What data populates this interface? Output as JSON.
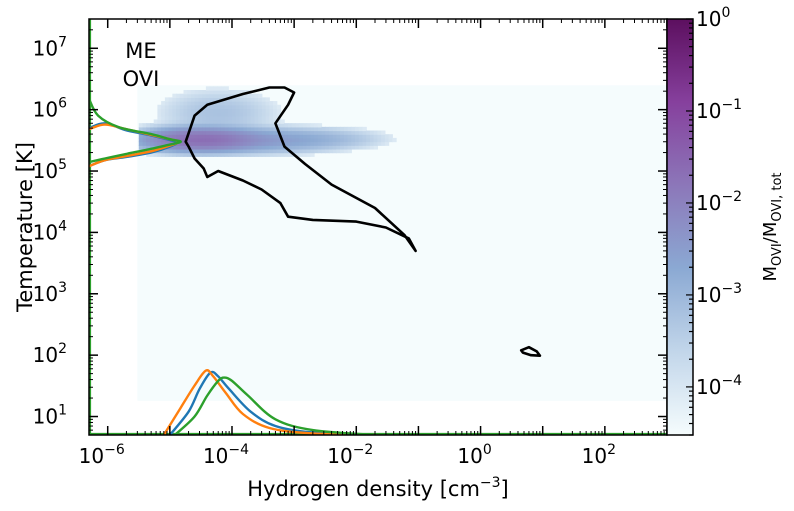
{
  "chart_data": {
    "type": "heatmap",
    "annotation": [
      "ME",
      "OVI"
    ],
    "xlabel": "Hydrogen density [cm",
    "xlabel_sup": "−3",
    "xlabel_end": "]",
    "ylabel": "Temperature [K]",
    "x_scale": "log",
    "y_scale": "log",
    "xlim": [
      5e-07,
      1000
    ],
    "ylim": [
      5,
      30000000
    ],
    "x_ticks": [
      {
        "value": 1e-06,
        "base": "10",
        "exp": "−6"
      },
      {
        "value": 0.0001,
        "base": "10",
        "exp": "−4"
      },
      {
        "value": 0.01,
        "base": "10",
        "exp": "−2"
      },
      {
        "value": 1,
        "base": "10",
        "exp": "0"
      },
      {
        "value": 100,
        "base": "10",
        "exp": "2"
      }
    ],
    "y_ticks": [
      {
        "value": 10,
        "base": "10",
        "exp": "1"
      },
      {
        "value": 100,
        "base": "10",
        "exp": "2"
      },
      {
        "value": 1000,
        "base": "10",
        "exp": "3"
      },
      {
        "value": 10000,
        "base": "10",
        "exp": "4"
      },
      {
        "value": 100000,
        "base": "10",
        "exp": "5"
      },
      {
        "value": 1000000,
        "base": "10",
        "exp": "6"
      },
      {
        "value": 10000000,
        "base": "10",
        "exp": "7"
      }
    ],
    "colorbar": {
      "label_main": "M",
      "label_sub1": "OVI",
      "label_mid": "/M",
      "label_sub2": "OVI, tot",
      "scale": "log",
      "range": [
        3e-05,
        1
      ],
      "colors": [
        "#f5fcfd",
        "#c2d6ea",
        "#8ba9d3",
        "#8c77b9",
        "#86409d",
        "#5c0f5f"
      ],
      "ticks": [
        {
          "value": 1,
          "base": "10",
          "exp": "0"
        },
        {
          "value": 0.1,
          "base": "10",
          "exp": "−1"
        },
        {
          "value": 0.01,
          "base": "10",
          "exp": "−2"
        },
        {
          "value": 0.001,
          "base": "10",
          "exp": "−3"
        },
        {
          "value": 0.0001,
          "base": "10",
          "exp": "−4"
        }
      ]
    },
    "background_region": {
      "x": [
        3e-06,
        1000
      ],
      "y": [
        18,
        2500000
      ],
      "fraction": 3e-05
    },
    "hotspots": [
      {
        "x": 3e-05,
        "y": 330000,
        "sx": 0.45,
        "sy": 0.09,
        "peak": 0.02
      },
      {
        "x": 0.0002,
        "y": 320000,
        "sx": 0.7,
        "sy": 0.1,
        "peak": 0.003
      },
      {
        "x": 0.002,
        "y": 340000,
        "sx": 0.6,
        "sy": 0.09,
        "peak": 0.0008
      },
      {
        "x": 6e-05,
        "y": 900000,
        "sx": 0.5,
        "sy": 0.2,
        "peak": 0.0006
      }
    ],
    "contours": [
      {
        "color": "#000000",
        "points": [
          [
            1.8e-05,
            300000
          ],
          [
            2.5e-05,
            800000
          ],
          [
            4e-05,
            1200000
          ],
          [
            0.00015,
            1800000
          ],
          [
            0.0004,
            2300000
          ],
          [
            0.0007,
            2300000
          ],
          [
            0.001,
            1900000
          ],
          [
            0.0008,
            1200000
          ],
          [
            0.0005,
            600000
          ],
          [
            0.0007,
            250000
          ],
          [
            0.0015,
            130000
          ],
          [
            0.004,
            60000
          ],
          [
            0.02,
            25000
          ],
          [
            0.06,
            9000
          ],
          [
            0.09,
            5000
          ],
          [
            0.07,
            8000
          ],
          [
            0.03,
            12000
          ],
          [
            0.01,
            15000
          ],
          [
            0.002,
            16000
          ],
          [
            0.0008,
            18000
          ],
          [
            0.0006,
            30000
          ],
          [
            0.0003,
            50000
          ],
          [
            0.00015,
            70000
          ],
          [
            6e-05,
            100000
          ],
          [
            4e-05,
            80000
          ],
          [
            3.5e-05,
            110000
          ],
          [
            2.5e-05,
            160000
          ],
          [
            2e-05,
            250000
          ],
          [
            1.8e-05,
            300000
          ]
        ]
      },
      {
        "color": "#000000",
        "points": [
          [
            4.5,
            120
          ],
          [
            6,
            135
          ],
          [
            8,
            115
          ],
          [
            9,
            98
          ],
          [
            6.5,
            100
          ],
          [
            4.8,
            110
          ],
          [
            4.5,
            120
          ]
        ]
      }
    ],
    "series": [
      {
        "name": "",
        "color": "#1f77b4",
        "density_curve": [
          [
            1e-05,
            5
          ],
          [
            2e-05,
            12
          ],
          [
            3e-05,
            28
          ],
          [
            4.5e-05,
            52
          ],
          [
            6e-05,
            45
          ],
          [
            9e-05,
            28
          ],
          [
            0.0002,
            12
          ],
          [
            0.0005,
            7
          ],
          [
            0.002,
            5.5
          ],
          [
            0.02,
            5
          ]
        ],
        "temperature_curve": [
          [
            5e-07,
            500000.0
          ],
          [
            9e-07,
            600000.0
          ],
          [
            2e-06,
            460000.0
          ],
          [
            5e-06,
            380000.0
          ],
          [
            1e-05,
            320000.0
          ],
          [
            1.3e-05,
            290000.0
          ],
          [
            1e-05,
            250000.0
          ],
          [
            5e-06,
            200000.0
          ],
          [
            2e-06,
            170000.0
          ],
          [
            9e-07,
            150000.0
          ],
          [
            5e-07,
            120000.0
          ]
        ]
      },
      {
        "name": "",
        "color": "#ff7f0e",
        "density_curve": [
          [
            8e-06,
            5
          ],
          [
            1.5e-05,
            14
          ],
          [
            2.5e-05,
            32
          ],
          [
            3.8e-05,
            56
          ],
          [
            5e-05,
            45
          ],
          [
            8e-05,
            24
          ],
          [
            0.00015,
            11
          ],
          [
            0.0004,
            6.5
          ],
          [
            0.002,
            5.3
          ],
          [
            0.02,
            5
          ]
        ],
        "temperature_curve": [
          [
            5e-07,
            480000.0
          ],
          [
            9e-07,
            570000.0
          ],
          [
            2e-06,
            480000.0
          ],
          [
            5e-06,
            390000.0
          ],
          [
            1e-05,
            330000.0
          ],
          [
            1.4e-05,
            300000.0
          ],
          [
            1e-05,
            260000.0
          ],
          [
            5e-06,
            210000.0
          ],
          [
            2e-06,
            175000.0
          ],
          [
            9e-07,
            150000.0
          ],
          [
            5e-07,
            120000.0
          ]
        ]
      },
      {
        "name": "",
        "color": "#2ca02c",
        "density_curve": [
          [
            1.2e-05,
            5
          ],
          [
            2.5e-05,
            10
          ],
          [
            4e-05,
            22
          ],
          [
            6e-05,
            38
          ],
          [
            7.5e-05,
            43
          ],
          [
            0.0001,
            38
          ],
          [
            0.00018,
            22
          ],
          [
            0.0005,
            9
          ],
          [
            0.002,
            6
          ],
          [
            0.02,
            5
          ]
        ],
        "temperature_curve": [
          [
            5e-07,
            1500000.0
          ],
          [
            7e-07,
            800000.0
          ],
          [
            1.5e-06,
            520000.0
          ],
          [
            5e-06,
            400000.0
          ],
          [
            1e-05,
            330000.0
          ],
          [
            1.5e-05,
            300000.0
          ],
          [
            1e-05,
            270000.0
          ],
          [
            5e-06,
            230000.0
          ],
          [
            2e-06,
            190000.0
          ],
          [
            9e-07,
            160000.0
          ],
          [
            5e-07,
            140000.0
          ]
        ]
      }
    ]
  }
}
